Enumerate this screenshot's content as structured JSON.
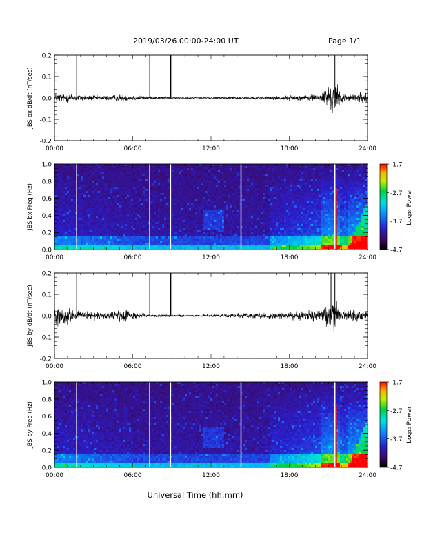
{
  "header": {
    "title": "2019/03/26  00:00-24:00 UT",
    "page_label": "Page 1/1"
  },
  "footer": {
    "xlabel": "Universal Time (hh:mm)"
  },
  "chart_data": [
    {
      "type": "line",
      "ylabel": "JBS bx dB/dt (nT/sec)",
      "xlim": [
        0,
        24
      ],
      "ylim": [
        -0.2,
        0.2
      ],
      "xticks": [
        "00:00",
        "06:00",
        "12:00",
        "18:00",
        "24:00"
      ],
      "yticks": [
        "0.2",
        "0.1",
        "0.0",
        "-0.1",
        "-0.2"
      ],
      "x_hours": [
        0,
        1.0,
        1.7,
        2.5,
        3.5,
        4.5,
        5.4,
        6.3,
        7.3,
        8.5,
        9.0,
        10.5,
        12.0,
        13.5,
        14.3,
        15.5,
        16.5,
        17.5,
        18.5,
        19.5,
        20.5,
        21.0,
        21.5,
        22.0,
        22.5,
        23.0,
        24.0
      ],
      "envelope_amplitude": [
        0.02,
        0.018,
        0.015,
        0.012,
        0.01,
        0.012,
        0.015,
        0.01,
        0.006,
        0.005,
        0.004,
        0.003,
        0.004,
        0.005,
        0.005,
        0.006,
        0.008,
        0.01,
        0.012,
        0.014,
        0.02,
        0.05,
        0.07,
        0.02,
        0.012,
        0.02,
        0.018
      ],
      "spikes": [
        {
          "x": 1.7,
          "ymin": 0.0,
          "ymax": 0.2
        },
        {
          "x": 7.3,
          "ymin": 0.0,
          "ymax": 0.2
        },
        {
          "x": 8.9,
          "ymin": 0.0,
          "ymax": 0.2
        },
        {
          "x": 14.3,
          "ymin": -0.2,
          "ymax": 0.2
        },
        {
          "x": 21.5,
          "ymin": 0.0,
          "ymax": 0.2
        }
      ]
    },
    {
      "type": "heatmap",
      "ylabel": "JBS bx Freq (Hz)",
      "xlim": [
        0,
        24
      ],
      "ylim": [
        0,
        1.0
      ],
      "xticks": [
        "00:00",
        "06:00",
        "12:00",
        "18:00",
        "24:00"
      ],
      "yticks": [
        "1.0",
        "0.8",
        "0.6",
        "0.4",
        "0.2",
        "0.0"
      ],
      "colorbar": {
        "label": "Log₁₀ Power",
        "ticks": [
          "-1.7",
          "-2.7",
          "-3.7",
          "-4.7"
        ],
        "range": [
          -4.7,
          -1.7
        ]
      },
      "gaps_hours": [
        1.7,
        7.3,
        8.9,
        14.3,
        21.5
      ],
      "red_line": {
        "x": 21.6,
        "ymax": 0.73
      }
    },
    {
      "type": "line",
      "ylabel": "JBS by dB/dt (nT/sec)",
      "xlim": [
        0,
        24
      ],
      "ylim": [
        -0.2,
        0.2
      ],
      "xticks": [
        "00:00",
        "06:00",
        "12:00",
        "18:00",
        "24:00"
      ],
      "yticks": [
        "0.2",
        "0.1",
        "0.0",
        "-0.1",
        "-0.2"
      ],
      "x_hours": [
        0,
        0.4,
        1.0,
        1.7,
        2.5,
        3.5,
        4.5,
        5.4,
        6.3,
        7.3,
        8.5,
        9.0,
        10.5,
        12.0,
        13.5,
        14.3,
        15.5,
        16.5,
        17.5,
        18.5,
        19.5,
        20.5,
        21.0,
        21.5,
        22.0,
        22.5,
        23.0,
        24.0
      ],
      "envelope_amplitude": [
        0.02,
        0.05,
        0.03,
        0.02,
        0.018,
        0.015,
        0.02,
        0.025,
        0.012,
        0.006,
        0.006,
        0.005,
        0.004,
        0.006,
        0.008,
        0.01,
        0.01,
        0.012,
        0.012,
        0.015,
        0.018,
        0.025,
        0.055,
        0.07,
        0.02,
        0.018,
        0.03,
        0.018
      ],
      "spikes": [
        {
          "x": 1.7,
          "ymin": 0.0,
          "ymax": 0.2
        },
        {
          "x": 7.3,
          "ymin": 0.0,
          "ymax": 0.2
        },
        {
          "x": 8.9,
          "ymin": 0.0,
          "ymax": 0.2
        },
        {
          "x": 14.3,
          "ymin": -0.2,
          "ymax": 0.2
        },
        {
          "x": 21.2,
          "ymin": 0.0,
          "ymax": 0.2
        },
        {
          "x": 21.5,
          "ymin": 0.0,
          "ymax": 0.2
        }
      ]
    },
    {
      "type": "heatmap",
      "ylabel": "JBS by Freq (Hz)",
      "xlim": [
        0,
        24
      ],
      "ylim": [
        0,
        1.0
      ],
      "xticks": [
        "00:00",
        "06:00",
        "12:00",
        "18:00",
        "24:00"
      ],
      "yticks": [
        "1.0",
        "0.8",
        "0.6",
        "0.4",
        "0.2",
        "0.0"
      ],
      "colorbar": {
        "label": "Log₁₀ Power",
        "ticks": [
          "-1.7",
          "-2.7",
          "-3.7",
          "-4.7"
        ],
        "range": [
          -4.7,
          -1.7
        ]
      },
      "gaps_hours": [
        1.7,
        7.3,
        8.9,
        14.3,
        21.5
      ],
      "red_line": {
        "x": 21.6,
        "ymax": 0.73
      }
    }
  ]
}
